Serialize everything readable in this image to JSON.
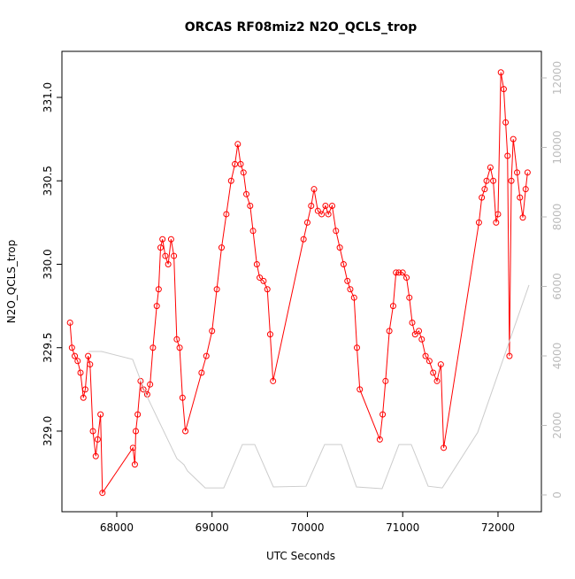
{
  "chart_data": {
    "type": "line",
    "title": "ORCAS RF08miz2 N2O_QCLS_trop",
    "xlabel": "UTC Seconds",
    "ylabel": "N2O_QCLS_trop",
    "xlim": [
      67425,
      72455
    ],
    "ylim": [
      328.517,
      331.276
    ],
    "y2lim": [
      -484,
      12764
    ],
    "xticks": [
      68000,
      69000,
      70000,
      71000,
      72000
    ],
    "yticks": [
      {
        "value": 329,
        "label": "329.0"
      },
      {
        "value": 329.5,
        "label": "329.5"
      },
      {
        "value": 330,
        "label": "330.0"
      },
      {
        "value": 330.5,
        "label": "330.5"
      },
      {
        "value": 331,
        "label": "331.0"
      }
    ],
    "y2ticks": [
      0,
      2000,
      4000,
      6000,
      8000,
      10000,
      12000
    ],
    "series": [
      {
        "color": "#ff0000",
        "markers": true,
        "x": [
          67510,
          67530,
          67560,
          67590,
          67620,
          67650,
          67670,
          67700,
          67720,
          67750,
          67780,
          67800,
          67830,
          67850,
          68170,
          68190,
          68200,
          68220,
          68250,
          68280,
          68320,
          68350,
          68380,
          68420,
          68440,
          68460,
          68480,
          68510,
          68540,
          68570,
          68600,
          68630,
          68660,
          68690,
          68720,
          68890,
          68940,
          69000,
          69050,
          69100,
          69150,
          69200,
          69240,
          69270,
          69300,
          69330,
          69360,
          69400,
          69430,
          69470,
          69500,
          69540,
          69580,
          69610,
          69640,
          69960,
          70000,
          70040,
          70070,
          70110,
          70150,
          70190,
          70220,
          70260,
          70300,
          70340,
          70380,
          70420,
          70450,
          70490,
          70520,
          70550,
          70760,
          70790,
          70820,
          70860,
          70900,
          70930,
          70960,
          71000,
          71040,
          71070,
          71100,
          71130,
          71170,
          71200,
          71240,
          71280,
          71320,
          71360,
          71400,
          71430,
          71800,
          71830,
          71860,
          71880,
          71920,
          71950,
          71980,
          72000,
          72030,
          72060,
          72080,
          72100,
          72120,
          72140,
          72160,
          72200,
          72230,
          72260,
          72290,
          72310
        ],
        "values": [
          329.65,
          329.5,
          329.45,
          329.42,
          329.35,
          329.2,
          329.25,
          329.45,
          329.4,
          329.0,
          328.85,
          328.95,
          329.1,
          328.63,
          328.9,
          328.8,
          329.0,
          329.1,
          329.3,
          329.25,
          329.22,
          329.28,
          329.5,
          329.75,
          329.85,
          330.1,
          330.15,
          330.05,
          330.0,
          330.15,
          330.05,
          329.55,
          329.5,
          329.2,
          329.0,
          329.35,
          329.45,
          329.6,
          329.85,
          330.1,
          330.3,
          330.5,
          330.6,
          330.72,
          330.6,
          330.55,
          330.42,
          330.35,
          330.2,
          330.0,
          329.92,
          329.9,
          329.85,
          329.58,
          329.3,
          330.15,
          330.25,
          330.35,
          330.45,
          330.32,
          330.3,
          330.35,
          330.3,
          330.35,
          330.2,
          330.1,
          330.0,
          329.9,
          329.85,
          329.8,
          329.5,
          329.25,
          328.95,
          329.1,
          329.3,
          329.6,
          329.75,
          329.95,
          329.95,
          329.95,
          329.92,
          329.8,
          329.65,
          329.58,
          329.6,
          329.55,
          329.45,
          329.42,
          329.35,
          329.3,
          329.4,
          328.9,
          330.25,
          330.4,
          330.45,
          330.5,
          330.58,
          330.5,
          330.25,
          330.3,
          331.15,
          331.05,
          330.85,
          330.65,
          329.45,
          330.5,
          330.75,
          330.55,
          330.4,
          330.28,
          330.45,
          330.55
        ]
      },
      {
        "color": "#cccccc",
        "markers": false,
        "axis": "y2",
        "x": [
          67703,
          67842,
          68167,
          68306,
          68631,
          68705,
          68742,
          68928,
          69123,
          69318,
          69448,
          69643,
          69986,
          70181,
          70357,
          70515,
          70784,
          70961,
          71090,
          71267,
          71415,
          71787,
          72325
        ],
        "values": [
          4127,
          4127,
          3900,
          2900,
          1045,
          870,
          690,
          200,
          200,
          1450,
          1450,
          230,
          250,
          1450,
          1450,
          230,
          180,
          1450,
          1450,
          250,
          200,
          1800,
          6040
        ]
      }
    ]
  }
}
